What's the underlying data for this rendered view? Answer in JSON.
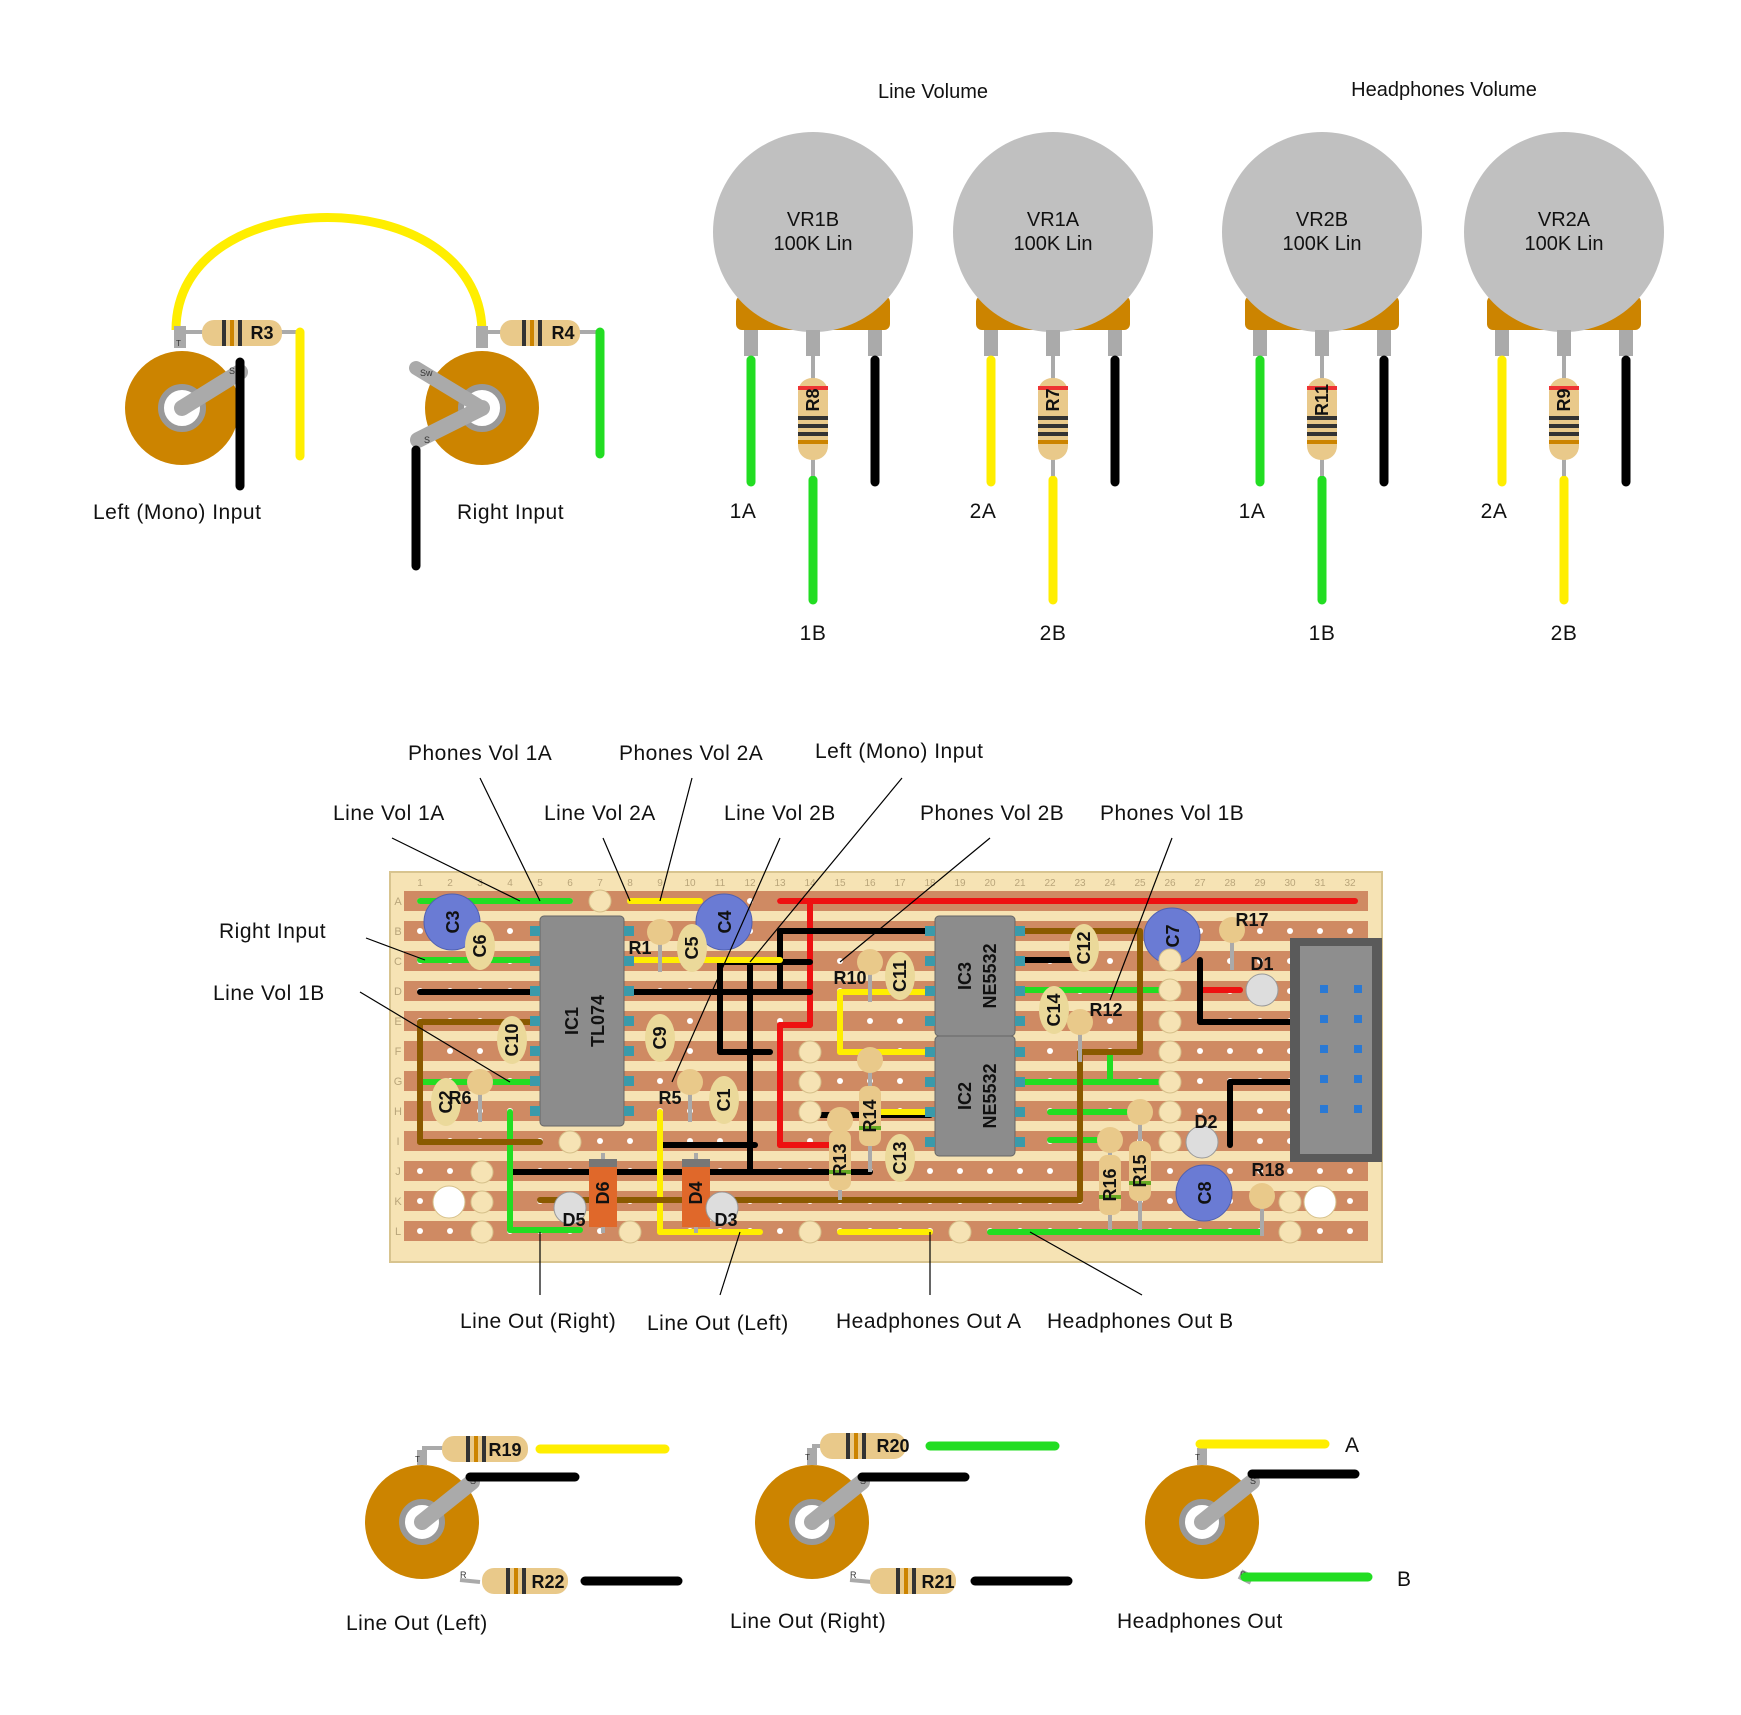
{
  "section_titles": {
    "line_volume": "Line Volume",
    "headphones_volume": "Headphones Volume"
  },
  "pots": [
    {
      "id": "VR1B",
      "value": "100K Lin",
      "resistor": "R8",
      "pin_left": "1A",
      "pin_mid": "1B"
    },
    {
      "id": "VR1A",
      "value": "100K Lin",
      "resistor": "R7",
      "pin_left": "2A",
      "pin_mid": "2B"
    },
    {
      "id": "VR2B",
      "value": "100K Lin",
      "resistor": "R11",
      "pin_left": "1A",
      "pin_mid": "1B"
    },
    {
      "id": "VR2A",
      "value": "100K Lin",
      "resistor": "R9",
      "pin_left": "2A",
      "pin_mid": "2B"
    }
  ],
  "input_jacks": {
    "left_label": "Left (Mono) Input",
    "right_label": "Right Input",
    "left_resistor": "R3",
    "right_resistor": "R4",
    "sw": "Sw",
    "s": "S",
    "t": "T"
  },
  "board_callouts": {
    "phones_vol_1a": "Phones Vol 1A",
    "phones_vol_2a": "Phones Vol 2A",
    "left_mono_input": "Left (Mono) Input",
    "line_vol_1a": "Line Vol 1A",
    "line_vol_2a": "Line Vol 2A",
    "line_vol_2b": "Line Vol 2B",
    "phones_vol_2b": "Phones Vol 2B",
    "phones_vol_1b": "Phones Vol 1B",
    "right_input": "Right Input",
    "line_vol_1b": "Line Vol 1B",
    "line_out_right": "Line Out (Right)",
    "line_out_left": "Line Out (Left)",
    "headphones_out_a": "Headphones Out A",
    "headphones_out_b": "Headphones Out B"
  },
  "board": {
    "rows": [
      "A",
      "B",
      "C",
      "D",
      "E",
      "F",
      "G",
      "H",
      "I",
      "J",
      "K",
      "L"
    ],
    "columns": [
      "1",
      "2",
      "3",
      "4",
      "5",
      "6",
      "7",
      "8",
      "9",
      "10",
      "11",
      "12",
      "13",
      "14",
      "15",
      "16",
      "17",
      "18",
      "19",
      "20",
      "21",
      "22",
      "23",
      "24",
      "25",
      "26",
      "27",
      "28",
      "29",
      "30",
      "31",
      "32"
    ],
    "ics": [
      {
        "ref": "IC1",
        "part": "TL074"
      },
      {
        "ref": "IC3",
        "part": "NE5532"
      },
      {
        "ref": "IC2",
        "part": "NE5532"
      }
    ],
    "components": {
      "c3": "C3",
      "c4": "C4",
      "c7": "C7",
      "c8": "C8",
      "c6": "C6",
      "c5": "C5",
      "c10": "C10",
      "c9": "C9",
      "c1": "C1",
      "c2": "C2",
      "c11": "C11",
      "c12": "C12",
      "c13": "C13",
      "c14": "C14",
      "r1": "R1",
      "r5": "R5",
      "r6": "R6",
      "r10": "R10",
      "r12": "R12",
      "r13": "R13",
      "r14": "R14",
      "r15": "R15",
      "r16": "R16",
      "r17": "R17",
      "r18": "R18",
      "d1": "D1",
      "d2": "D2",
      "d3": "D3",
      "d4": "D4",
      "d5": "D5",
      "d6": "D6"
    }
  },
  "output_jacks": {
    "line_out_left": "Line Out (Left)",
    "line_out_right": "Line Out (Right)",
    "headphones_out": "Headphones Out",
    "r19": "R19",
    "r22": "R22",
    "r20": "R20",
    "r21": "R21",
    "a": "A",
    "b": "B",
    "t": "T",
    "s": "S",
    "r": "R"
  },
  "colors": {
    "pot_body": "#c0c0c0",
    "pot_base": "#cc8400",
    "jack": "#cc8400",
    "wire_green": "#22dd22",
    "wire_yellow": "#ffee00",
    "wire_black": "#000000",
    "wire_red": "#ee1111",
    "wire_brown": "#8a5a00",
    "board": "#f6e3b4",
    "strip": "#cf8a63",
    "ic": "#8c8c8c",
    "elco": "#6a7bd4",
    "ceramic": "#ebd99a",
    "diode": "#e0682a",
    "resistor": "#e9c98a",
    "header": "#5a5a5a"
  }
}
